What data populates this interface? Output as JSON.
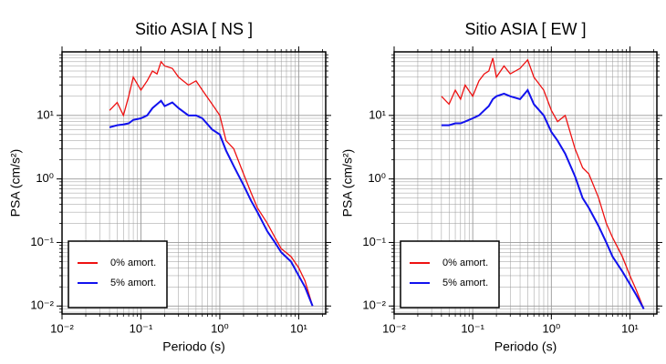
{
  "chart_data": [
    {
      "type": "line",
      "title": "Sitio ASIA [ NS ]",
      "x_label": "Periodo (s)",
      "y_label": "PSA (cm/s²)",
      "x": [
        0.04,
        0.05,
        0.06,
        0.07,
        0.08,
        0.1,
        0.12,
        0.14,
        0.16,
        0.18,
        0.2,
        0.25,
        0.3,
        0.4,
        0.5,
        0.6,
        0.8,
        1,
        1.2,
        1.5,
        2,
        2.5,
        3,
        4,
        5,
        6,
        8,
        10,
        12,
        15
      ],
      "series": [
        {
          "name": "0% amort.",
          "color": "#ee1111",
          "values": [
            12,
            16,
            10,
            20,
            40,
            25,
            35,
            50,
            45,
            70,
            60,
            55,
            40,
            30,
            35,
            25,
            15,
            10,
            4,
            3,
            1.2,
            0.6,
            0.35,
            0.2,
            0.12,
            0.08,
            0.06,
            0.04,
            0.025,
            0.01
          ]
        },
        {
          "name": "5% amort.",
          "color": "#1111ee",
          "values": [
            6.5,
            7,
            7.2,
            7.5,
            8.5,
            9,
            10,
            13,
            15,
            17,
            14,
            16,
            13,
            10,
            10,
            9,
            6,
            5,
            2.8,
            1.6,
            0.8,
            0.45,
            0.3,
            0.15,
            0.1,
            0.07,
            0.05,
            0.03,
            0.02,
            0.01
          ]
        }
      ],
      "xlim": [
        0.01,
        22
      ],
      "ylim": [
        0.0075,
        100
      ],
      "log_x": true,
      "log_y": true,
      "grid": true,
      "legend": "lower left",
      "xticks": [
        {
          "value": 0.01,
          "label": "10⁻²"
        },
        {
          "value": 0.1,
          "label": "10⁻¹"
        },
        {
          "value": 1,
          "label": "10⁰"
        },
        {
          "value": 10,
          "label": "10¹"
        }
      ],
      "yticks": [
        {
          "value": 0.01,
          "label": "10⁻²"
        },
        {
          "value": 0.1,
          "label": "10⁻¹"
        },
        {
          "value": 1,
          "label": "10⁰"
        },
        {
          "value": 10,
          "label": "10¹"
        }
      ]
    },
    {
      "type": "line",
      "title": "Sitio ASIA [ EW ]",
      "x_label": "Periodo (s)",
      "y_label": "PSA (cm/s²)",
      "x": [
        0.04,
        0.05,
        0.06,
        0.07,
        0.08,
        0.1,
        0.12,
        0.14,
        0.16,
        0.18,
        0.2,
        0.25,
        0.3,
        0.4,
        0.5,
        0.6,
        0.8,
        1,
        1.2,
        1.5,
        2,
        2.5,
        3,
        4,
        5,
        6,
        8,
        10,
        12,
        15
      ],
      "series": [
        {
          "name": "0% amort.",
          "color": "#ee1111",
          "values": [
            20,
            15,
            25,
            18,
            30,
            20,
            35,
            45,
            50,
            80,
            40,
            60,
            45,
            55,
            75,
            40,
            25,
            12,
            8,
            10,
            3,
            1.5,
            1.2,
            0.5,
            0.2,
            0.12,
            0.06,
            0.03,
            0.018,
            0.009
          ]
        },
        {
          "name": "5% amort.",
          "color": "#1111ee",
          "values": [
            7,
            7,
            7.5,
            7.5,
            8,
            9,
            10,
            12,
            14,
            18,
            20,
            22,
            20,
            18,
            25,
            15,
            10,
            5.5,
            4,
            2.5,
            1.1,
            0.5,
            0.35,
            0.18,
            0.1,
            0.06,
            0.035,
            0.022,
            0.015,
            0.009
          ]
        }
      ],
      "xlim": [
        0.01,
        22
      ],
      "ylim": [
        0.0075,
        100
      ],
      "log_x": true,
      "log_y": true,
      "grid": true,
      "legend": "lower left",
      "xticks": [
        {
          "value": 0.01,
          "label": "10⁻²"
        },
        {
          "value": 0.1,
          "label": "10⁻¹"
        },
        {
          "value": 1,
          "label": "10⁰"
        },
        {
          "value": 10,
          "label": "10¹"
        }
      ],
      "yticks": [
        {
          "value": 0.01,
          "label": "10⁻²"
        },
        {
          "value": 0.1,
          "label": "10⁻¹"
        },
        {
          "value": 1,
          "label": "10⁰"
        },
        {
          "value": 10,
          "label": "10¹"
        }
      ]
    }
  ]
}
